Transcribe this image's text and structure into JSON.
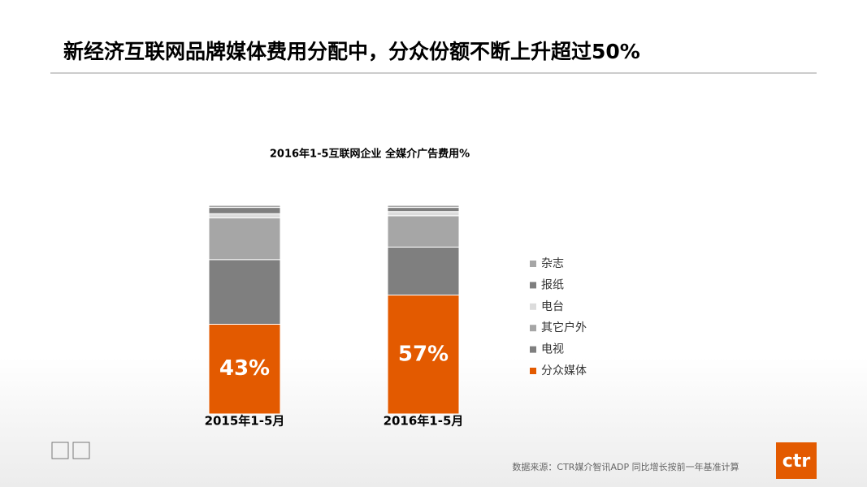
{
  "slide_title": "新经济互联网品牌媒体费用分配中，分众份额不断上升超过50%",
  "source": "数据来源：CTR媒介智讯ADP   同比增长按前一年基准计算",
  "logo": "ctr",
  "chart_data": {
    "type": "stacked_bar",
    "title": "2016年1-5互联网企业  全媒介广告费用%",
    "categories": [
      "2015年1-5月",
      "2016年1-5月"
    ],
    "series": [
      {
        "name": "分众媒体",
        "color": "#e35a00",
        "values": [
          43,
          57
        ],
        "value_labels": [
          "43%",
          "57%"
        ]
      },
      {
        "name": "电视",
        "color": "#7f7f7f",
        "values": [
          31,
          23
        ]
      },
      {
        "name": "其它户外",
        "color": "#a6a6a6",
        "values": [
          20,
          15
        ]
      },
      {
        "name": "电台",
        "color": "#dcdcdc",
        "values": [
          2,
          2
        ]
      },
      {
        "name": "报纸",
        "color": "#7f7f7f",
        "values": [
          3,
          2
        ]
      },
      {
        "name": "杂志",
        "color": "#a6a6a6",
        "values": [
          1,
          1
        ]
      }
    ]
  }
}
